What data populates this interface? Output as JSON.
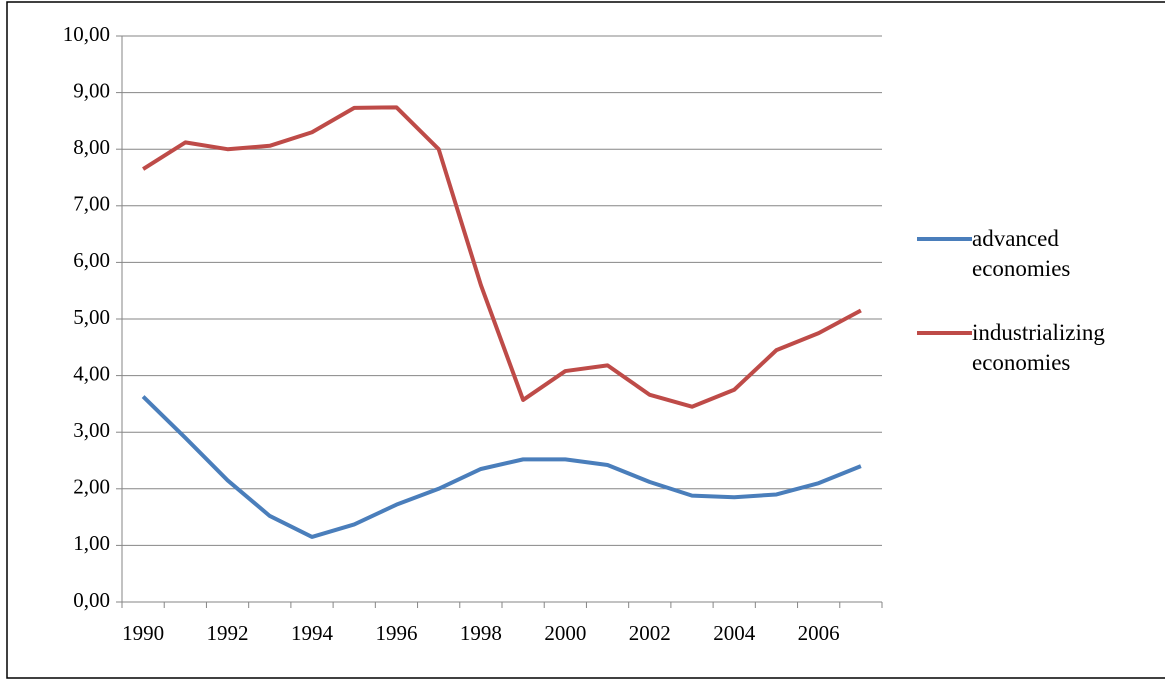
{
  "chart_data": {
    "type": "line",
    "categories": [
      "1990",
      null,
      "1992",
      null,
      "1994",
      null,
      "1996",
      null,
      "1998",
      null,
      "2000",
      null,
      "2002",
      null,
      "2004",
      null,
      "2006",
      null
    ],
    "series": [
      {
        "name": "advanced economies",
        "color": "#4a7ebb",
        "values": [
          3.63,
          2.9,
          2.15,
          1.52,
          1.15,
          1.37,
          1.72,
          2.0,
          2.35,
          2.52,
          2.52,
          2.42,
          2.12,
          1.88,
          1.85,
          1.9,
          2.1,
          2.4
        ]
      },
      {
        "name": "industrializing economies",
        "color": "#be4b48",
        "values": [
          7.65,
          8.12,
          8.0,
          8.06,
          8.3,
          8.73,
          8.74,
          8.0,
          5.6,
          3.57,
          4.08,
          4.18,
          3.66,
          3.45,
          3.75,
          4.45,
          4.75,
          5.15
        ]
      }
    ],
    "ylim": [
      0,
      10
    ],
    "yticks": [
      {
        "value": 0,
        "label": "0,00"
      },
      {
        "value": 1,
        "label": "1,00"
      },
      {
        "value": 2,
        "label": "2,00"
      },
      {
        "value": 3,
        "label": "3,00"
      },
      {
        "value": 4,
        "label": "4,00"
      },
      {
        "value": 5,
        "label": "5,00"
      },
      {
        "value": 6,
        "label": "6,00"
      },
      {
        "value": 7,
        "label": "7,00"
      },
      {
        "value": 8,
        "label": "8,00"
      },
      {
        "value": 9,
        "label": "9,00"
      },
      {
        "value": 10,
        "label": "10,00"
      }
    ],
    "grid": true,
    "legend": "right"
  }
}
